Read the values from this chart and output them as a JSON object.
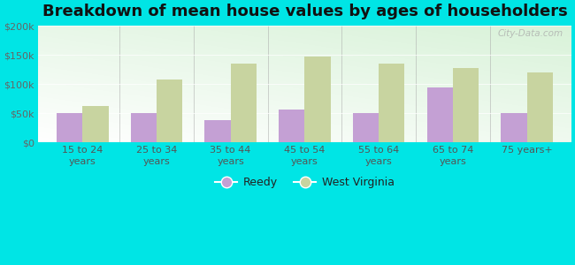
{
  "categories": [
    "15 to 24\nyears",
    "25 to 34\nyears",
    "35 to 44\nyears",
    "45 to 54\nyears",
    "55 to 64\nyears",
    "65 to 74\nyears",
    "75 years+"
  ],
  "reedy": [
    50000,
    50000,
    38000,
    57000,
    50000,
    95000,
    50000
  ],
  "west_virginia": [
    62000,
    108000,
    135000,
    147000,
    135000,
    128000,
    120000
  ],
  "reedy_color": "#c4a0d4",
  "wv_color": "#c8d4a0",
  "title": "Breakdown of mean house values by ages of householders",
  "title_fontsize": 13,
  "background_color": "#00e5e5",
  "ylim": [
    0,
    200000
  ],
  "yticks": [
    0,
    50000,
    100000,
    150000,
    200000
  ],
  "legend_labels": [
    "Reedy",
    "West Virginia"
  ],
  "watermark": "City-Data.com",
  "bar_width": 0.35
}
